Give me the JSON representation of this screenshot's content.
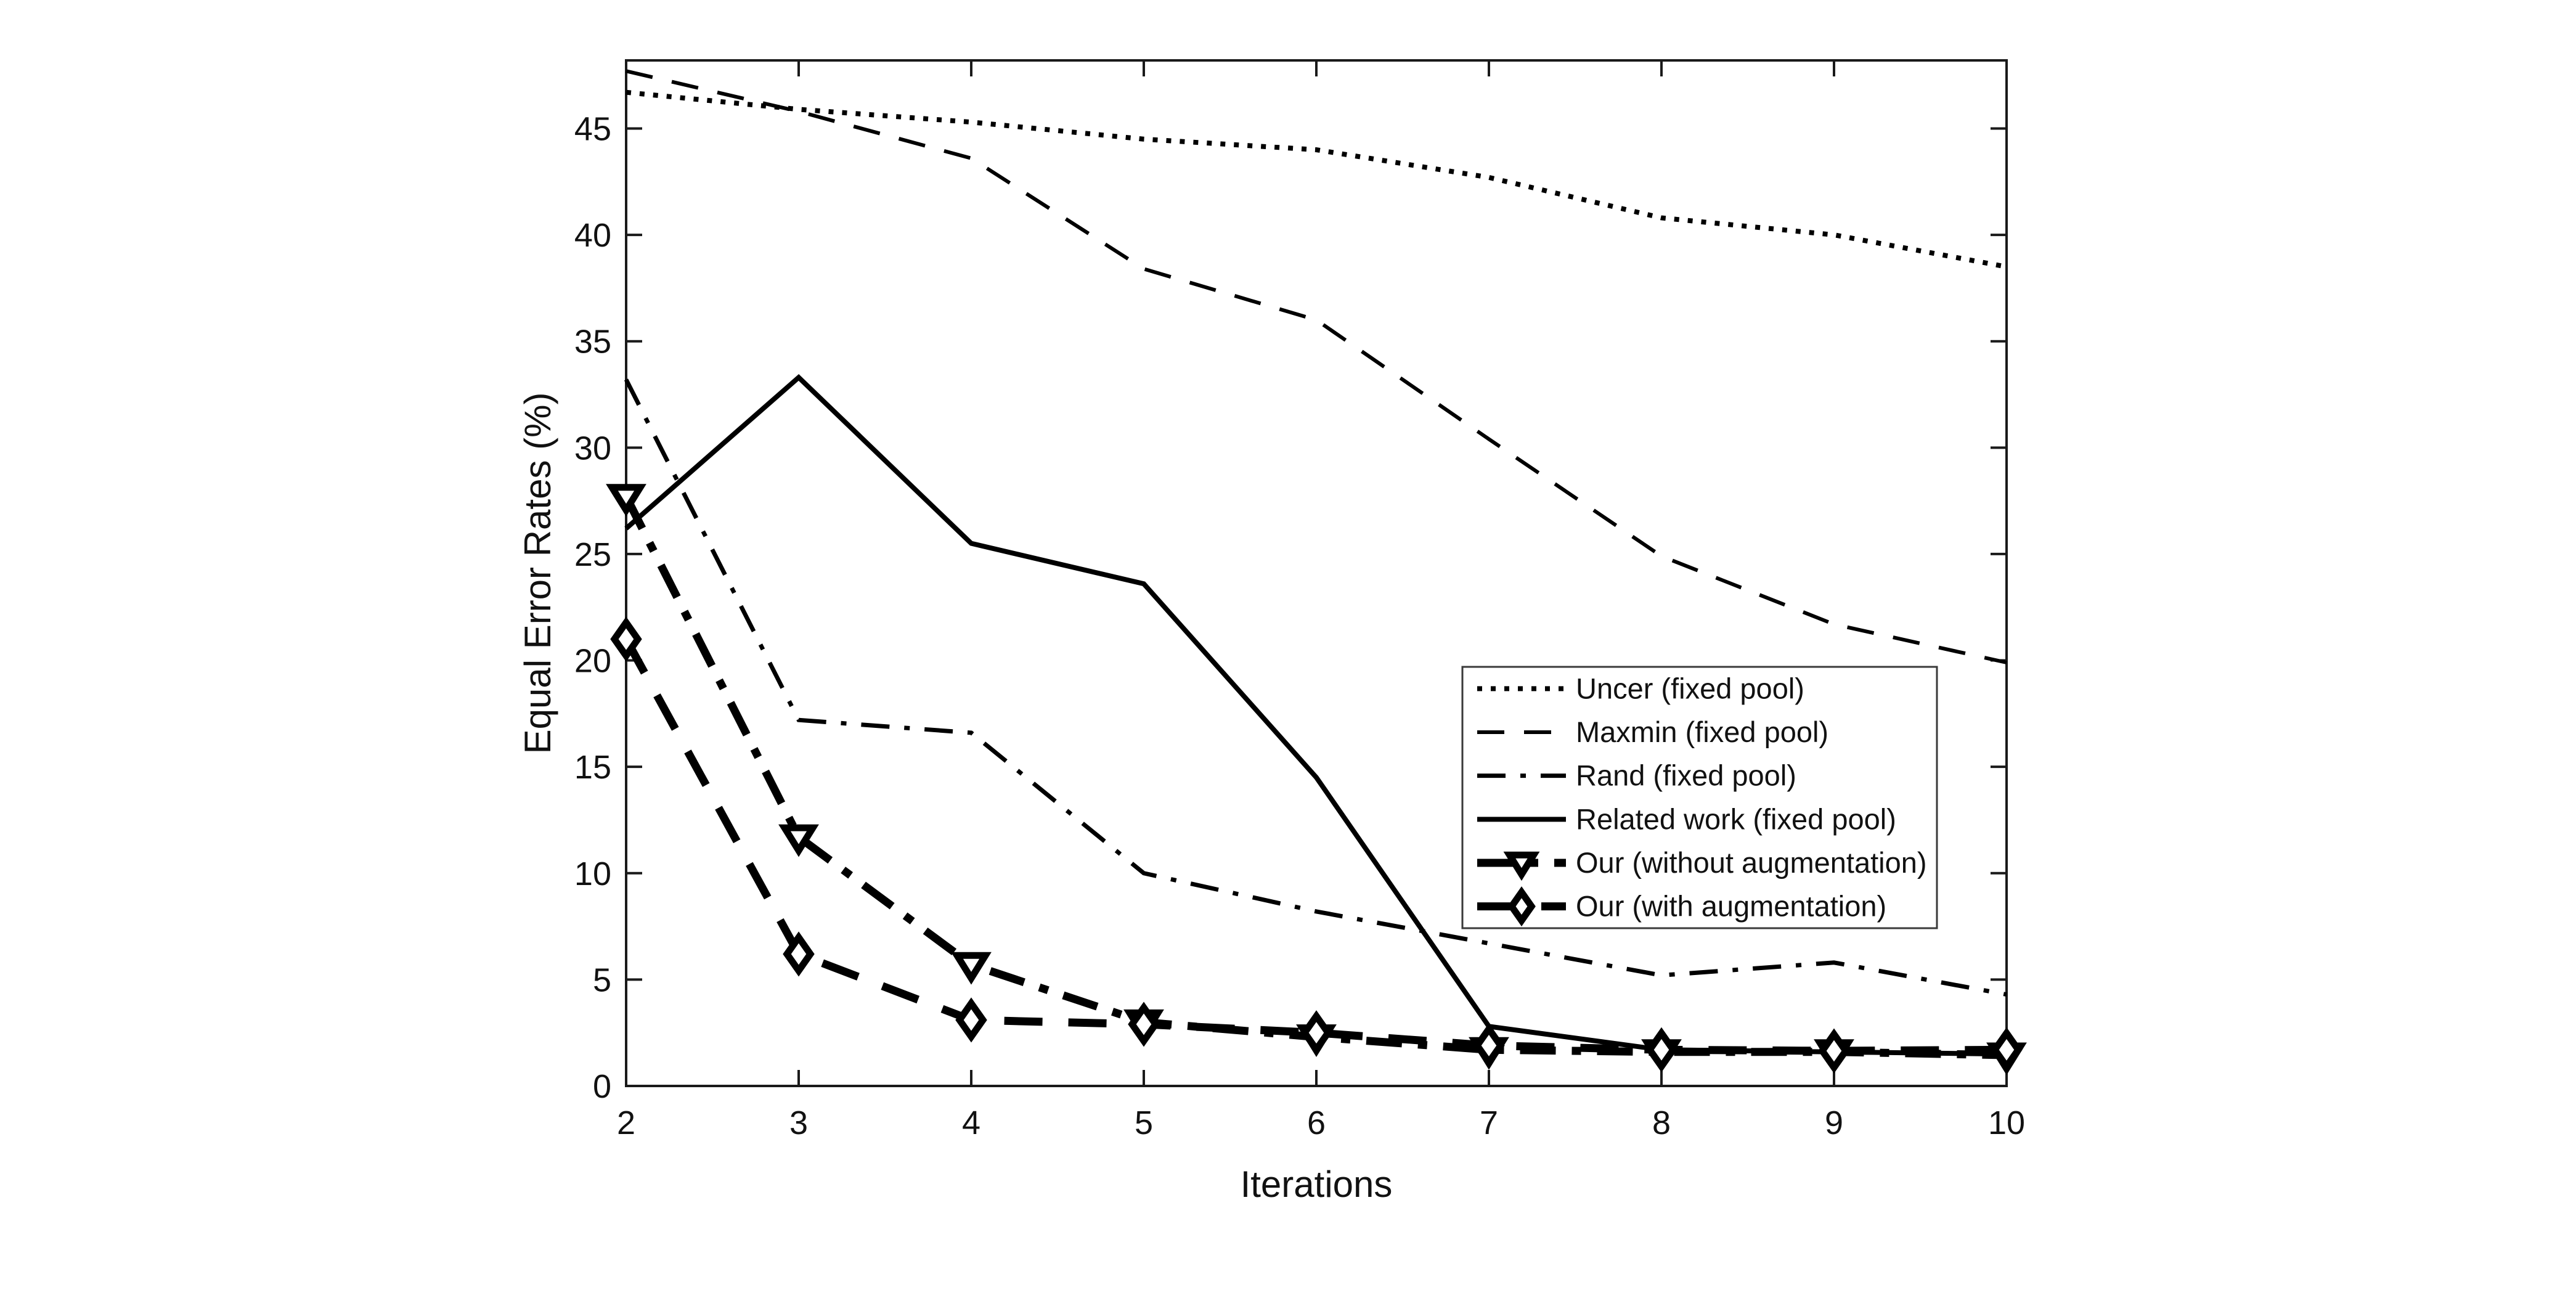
{
  "figure": {
    "background_color": "#ffffff",
    "line_color": "#000000",
    "axis_color": "#1a1a1a"
  },
  "chart_data": {
    "type": "line",
    "title": "",
    "xlabel": "Iterations",
    "ylabel": "Equal Error Rates (%)",
    "x": [
      2,
      3,
      4,
      5,
      6,
      7,
      8,
      9,
      10
    ],
    "xlim": [
      2,
      10
    ],
    "ylim": [
      0,
      48.2
    ],
    "xticks": [
      "2",
      "3",
      "4",
      "5",
      "6",
      "7",
      "8",
      "9",
      "10"
    ],
    "yticks": [
      "0",
      "5",
      "10",
      "15",
      "20",
      "25",
      "30",
      "35",
      "40",
      "45"
    ],
    "grid": false,
    "legend_position": "inside-middle-right",
    "series": [
      {
        "name": "Uncer (fixed pool)",
        "style": "dotted",
        "marker": "none",
        "values": [
          46.7,
          45.9,
          45.3,
          44.5,
          44.0,
          42.7,
          40.8,
          40.0,
          38.5
        ]
      },
      {
        "name": "Maxmin (fixed pool)",
        "style": "dashed",
        "marker": "none",
        "values": [
          47.7,
          45.8,
          43.6,
          38.4,
          36.0,
          30.4,
          24.9,
          21.7,
          19.9
        ]
      },
      {
        "name": "Rand (fixed pool)",
        "style": "dashdot",
        "marker": "none",
        "values": [
          33.2,
          17.2,
          16.6,
          10.0,
          8.2,
          6.7,
          5.2,
          5.8,
          4.3
        ]
      },
      {
        "name": "Related work (fixed pool)",
        "style": "solid",
        "marker": "none",
        "values": [
          26.2,
          33.3,
          25.5,
          23.6,
          14.5,
          2.8,
          1.7,
          1.6,
          1.5
        ]
      },
      {
        "name": "Our (without augmentation)",
        "style": "thick-dashdot",
        "marker": "triangle-down",
        "values": [
          27.7,
          11.7,
          5.7,
          3.0,
          2.3,
          1.7,
          1.6,
          1.6,
          1.45
        ]
      },
      {
        "name": "Our (with augmentation)",
        "style": "thick-dashed",
        "marker": "diamond",
        "values": [
          21.0,
          6.2,
          3.1,
          2.9,
          2.5,
          1.9,
          1.7,
          1.65,
          1.7
        ]
      }
    ]
  }
}
